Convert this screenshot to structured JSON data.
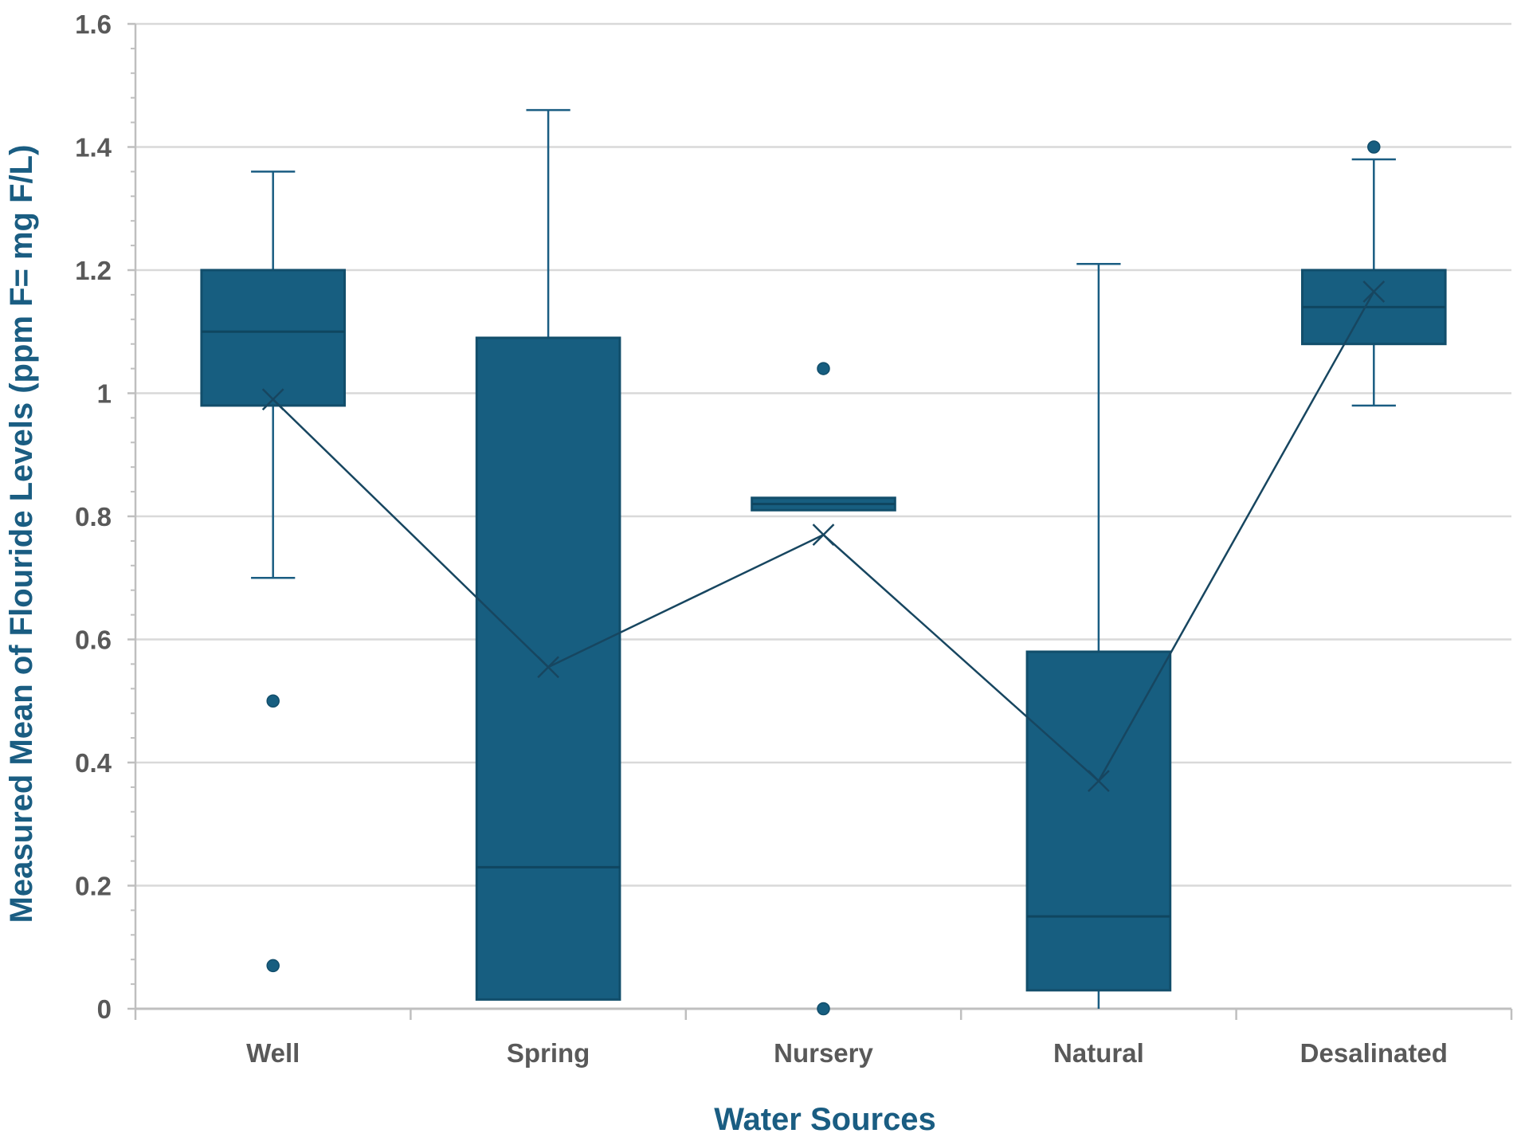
{
  "chart_data": {
    "type": "box",
    "title": "",
    "xlabel": "Water Sources",
    "ylabel": "Measured Mean of Flouride Levels (ppm F= mg F/L)",
    "ylim": [
      0,
      1.6
    ],
    "ytick_step": 0.2,
    "yticks": [
      "0",
      "0.2",
      "0.4",
      "0.6",
      "0.8",
      "1",
      "1.2",
      "1.4",
      "1.6"
    ],
    "grid": true,
    "legend": "none",
    "categories": [
      "Well",
      "Spring",
      "Nursery",
      "Natural",
      "Desalinated"
    ],
    "boxes": [
      {
        "category": "Well",
        "whisker_low": 0.7,
        "q1": 0.98,
        "median": 1.1,
        "q3": 1.2,
        "whisker_high": 1.36,
        "mean": 0.99,
        "outliers": [
          0.5,
          0.07
        ]
      },
      {
        "category": "Spring",
        "whisker_low": 0.015,
        "q1": 0.015,
        "median": 0.23,
        "q3": 1.09,
        "whisker_high": 1.46,
        "mean": 0.555,
        "outliers": []
      },
      {
        "category": "Nursery",
        "whisker_low": 0.81,
        "q1": 0.81,
        "median": 0.82,
        "q3": 0.83,
        "whisker_high": 0.83,
        "mean": 0.77,
        "outliers": [
          1.04,
          0.0
        ]
      },
      {
        "category": "Natural",
        "whisker_low": 0.0,
        "q1": 0.03,
        "median": 0.15,
        "q3": 0.58,
        "whisker_high": 1.21,
        "mean": 0.37,
        "outliers": []
      },
      {
        "category": "Desalinated",
        "whisker_low": 0.98,
        "q1": 1.08,
        "median": 1.14,
        "q3": 1.2,
        "whisker_high": 1.38,
        "mean": 1.165,
        "outliers": [
          1.4
        ]
      }
    ],
    "mean_line": true,
    "colors": {
      "box_fill": "#175e80",
      "box_stroke": "#124e6b",
      "median": "#0f4660",
      "whisker": "#1a5d82",
      "mean_line": "#174660",
      "grid": "#d9d9d9",
      "axis": "#bfbfbf"
    }
  }
}
